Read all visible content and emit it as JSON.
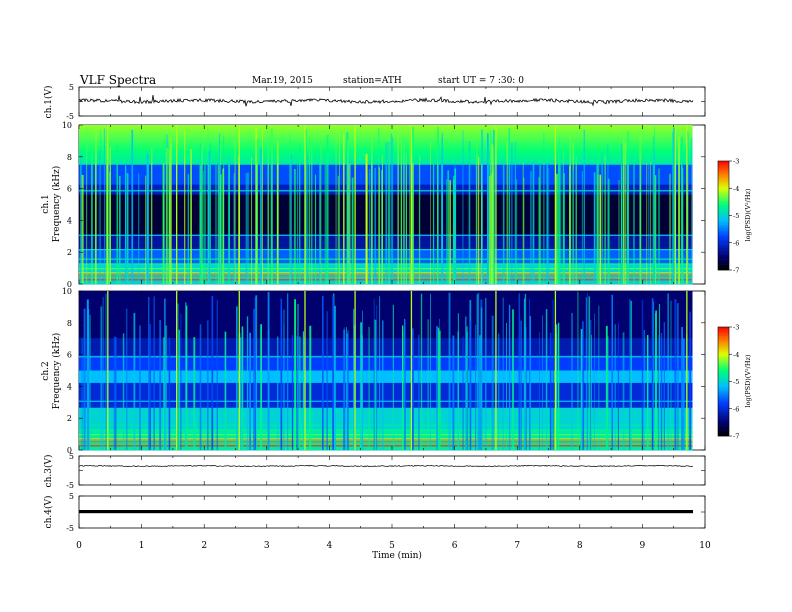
{
  "header": {
    "title": "VLF  Spectra",
    "date": "Mar.19, 2015",
    "station": "station=ATH",
    "start": "start  UT  =   7  :30: 0"
  },
  "chart_data": [
    {
      "type": "line",
      "name": "ch1-waveform",
      "ylabel": "ch.1(V)",
      "yticks": [
        "5",
        "-5"
      ],
      "ylim": [
        -5,
        5
      ],
      "xlim": [
        0,
        10
      ],
      "approx_level": 0.0
    },
    {
      "type": "heatmap",
      "name": "ch1-spectrogram",
      "ylabel_top": "ch.1",
      "ylabel": "Frequency  (kHz)",
      "yticks": [
        "0",
        "2",
        "4",
        "6",
        "8",
        "10"
      ],
      "ylim": [
        0,
        10
      ],
      "xlim": [
        0,
        9.8
      ],
      "colorbar": {
        "label": "log(PSD)(V²/Hz)",
        "ticks": [
          "-3",
          "-4",
          "-5",
          "-6",
          "-7"
        ],
        "range": [
          -7,
          -3
        ]
      }
    },
    {
      "type": "heatmap",
      "name": "ch2-spectrogram",
      "ylabel_top": "ch.2",
      "ylabel": "Frequency  (kHz)",
      "yticks": [
        "0",
        "2",
        "4",
        "6",
        "8",
        "10"
      ],
      "ylim": [
        0,
        10
      ],
      "xlim": [
        0,
        9.8
      ],
      "colorbar": {
        "label": "log(PSD)(V²/Hz)",
        "ticks": [
          "-3",
          "-4",
          "-5",
          "-6",
          "-7"
        ],
        "range": [
          -7,
          -3
        ]
      }
    },
    {
      "type": "line",
      "name": "ch3-waveform",
      "ylabel": "ch.3(V)",
      "yticks": [
        "5",
        "-5"
      ],
      "ylim": [
        -5,
        5
      ],
      "approx_level": 0.0
    },
    {
      "type": "line",
      "name": "ch4-waveform",
      "ylabel": "ch.4(V)",
      "yticks": [
        "5",
        "-5"
      ],
      "ylim": [
        -5,
        5
      ],
      "approx_level": 0.0
    }
  ],
  "xaxis": {
    "label": "Time  (min)",
    "ticks": [
      "0",
      "1",
      "2",
      "3",
      "4",
      "5",
      "6",
      "7",
      "8",
      "9",
      "10"
    ],
    "range": [
      0,
      10
    ]
  },
  "colors": {
    "high": "#ff0000",
    "mid_high": "#ffff00",
    "mid": "#00ff66",
    "mid_low": "#00a0ff",
    "low": "#000000"
  }
}
